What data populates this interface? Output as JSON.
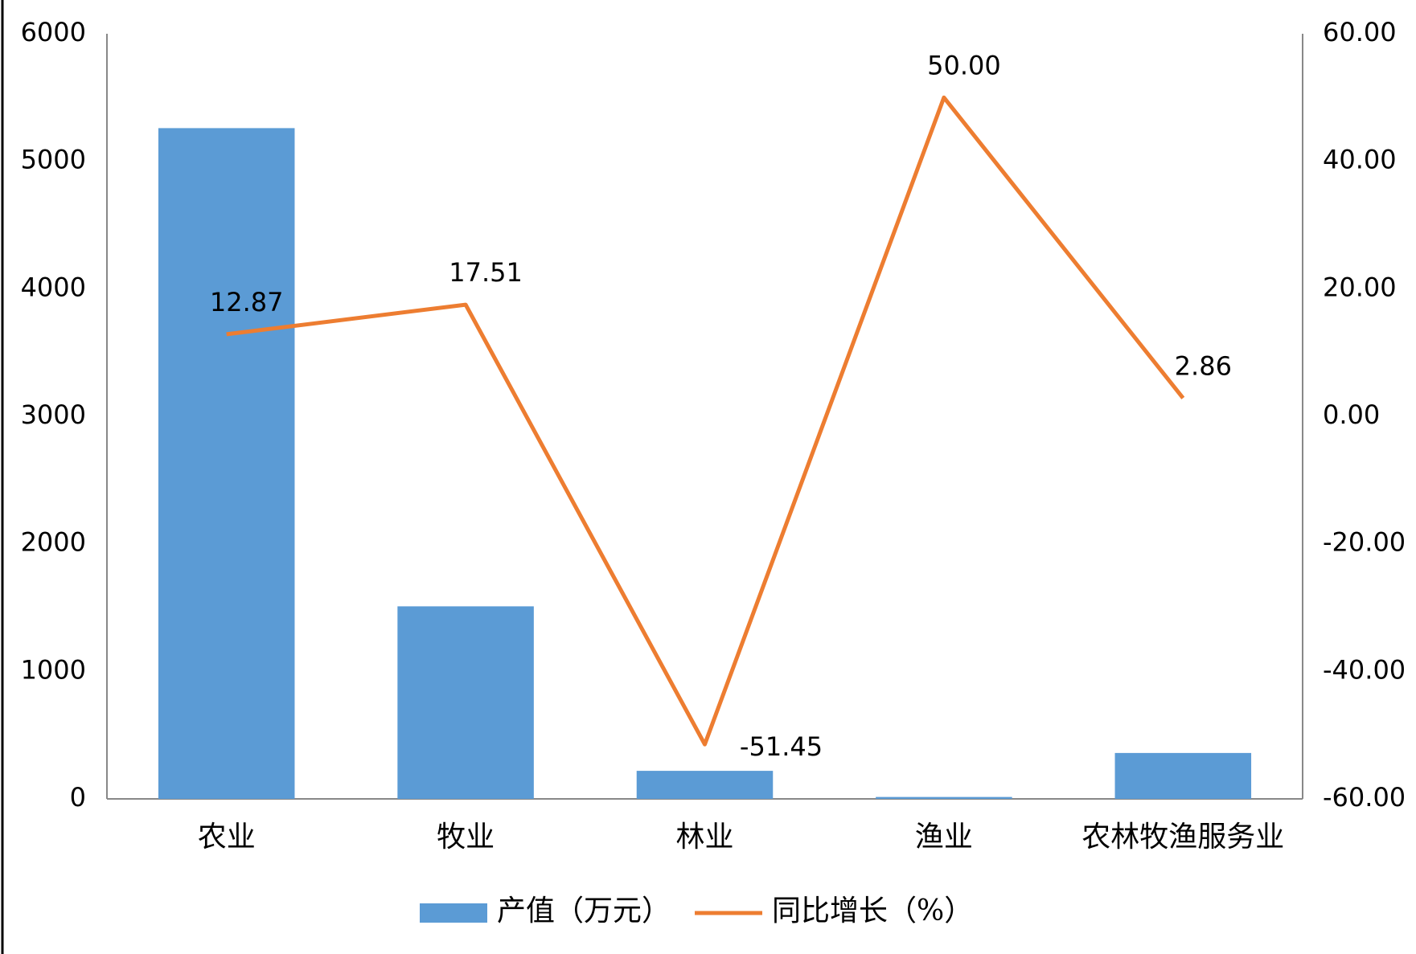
{
  "chart_data": {
    "type": "bar_line",
    "categories": [
      "农业",
      "牧业",
      "林业",
      "渔业",
      "农林牧渔服务业"
    ],
    "series": [
      {
        "name": "产值（万元）",
        "type": "bar",
        "color": "#5b9bd5",
        "values": [
          5260,
          1510,
          220,
          15,
          360
        ]
      },
      {
        "name": "同比增长（%）",
        "type": "line",
        "axis": "y2",
        "color": "#ed7d31",
        "values": [
          12.87,
          17.51,
          -51.45,
          50.0,
          2.86
        ],
        "value_labels": [
          "12.87",
          "17.51",
          "-51.45",
          "50.00",
          "2.86"
        ]
      }
    ],
    "ylim": [
      0,
      6000
    ],
    "yticks": [
      0,
      1000,
      2000,
      3000,
      4000,
      5000,
      6000
    ],
    "y2lim": [
      -60,
      60
    ],
    "y2ticks": [
      {
        "value": -60,
        "label": "-60.00"
      },
      {
        "value": -40,
        "label": "-40.00"
      },
      {
        "value": -20,
        "label": "-20.00"
      },
      {
        "value": 0,
        "label": "0.00"
      },
      {
        "value": 20,
        "label": "20.00"
      },
      {
        "value": 40,
        "label": "40.00"
      },
      {
        "value": 60,
        "label": "60.00"
      }
    ],
    "grid": false,
    "legend": "bottom"
  }
}
